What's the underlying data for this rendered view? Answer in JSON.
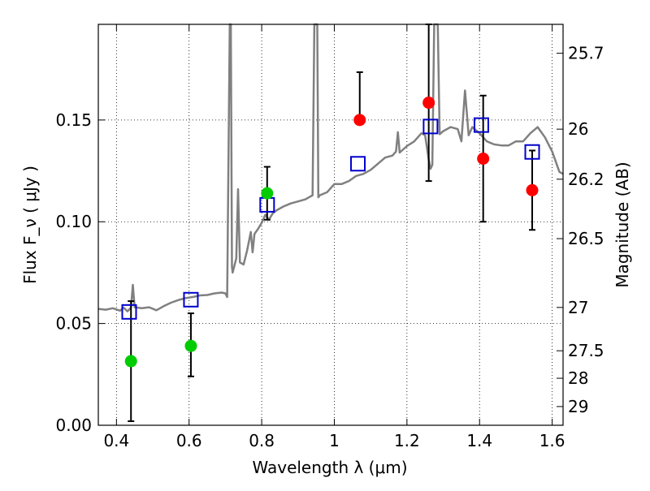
{
  "chart_data": {
    "type": "scatter",
    "xlabel": "Wavelength  λ (μm)",
    "ylabel": "Flux  F_ν  ( μJy )",
    "y2label": "Magnitude (AB)",
    "xlim": [
      0.35,
      1.63
    ],
    "ylim": [
      0.0,
      0.197
    ],
    "grid": true,
    "x_ticks": [
      {
        "value": 0.4,
        "label": "0.4"
      },
      {
        "value": 0.6,
        "label": "0.6"
      },
      {
        "value": 0.8,
        "label": "0.8"
      },
      {
        "value": 1.0,
        "label": "1"
      },
      {
        "value": 1.2,
        "label": "1.2"
      },
      {
        "value": 1.4,
        "label": "1.4"
      },
      {
        "value": 1.6,
        "label": "1.6"
      }
    ],
    "y_ticks": [
      {
        "value": 0.0,
        "label": "0.00"
      },
      {
        "value": 0.05,
        "label": "0.05"
      },
      {
        "value": 0.1,
        "label": "0.10"
      },
      {
        "value": 0.15,
        "label": "0.15"
      }
    ],
    "y2_ticks": [
      {
        "flux": 0.1828,
        "label": "25.7"
      },
      {
        "flux": 0.1455,
        "label": "26"
      },
      {
        "flux": 0.1209,
        "label": "26.2"
      },
      {
        "flux": 0.0917,
        "label": "26.5"
      },
      {
        "flux": 0.0579,
        "label": "27"
      },
      {
        "flux": 0.0366,
        "label": "27.5"
      },
      {
        "flux": 0.0231,
        "label": "28"
      },
      {
        "flux": 0.0092,
        "label": "29"
      }
    ],
    "series": [
      {
        "kind": "line",
        "color": "#808080",
        "points": [
          [
            0.35,
            0.0572
          ],
          [
            0.37,
            0.0568
          ],
          [
            0.39,
            0.0575
          ],
          [
            0.41,
            0.0563
          ],
          [
            0.42,
            0.0578
          ],
          [
            0.43,
            0.056
          ],
          [
            0.44,
            0.0578
          ],
          [
            0.445,
            0.069
          ],
          [
            0.45,
            0.058
          ],
          [
            0.47,
            0.0575
          ],
          [
            0.49,
            0.058
          ],
          [
            0.51,
            0.0565
          ],
          [
            0.53,
            0.0585
          ],
          [
            0.55,
            0.0602
          ],
          [
            0.57,
            0.0615
          ],
          [
            0.59,
            0.0625
          ],
          [
            0.61,
            0.063
          ],
          [
            0.63,
            0.0638
          ],
          [
            0.65,
            0.064
          ],
          [
            0.67,
            0.0648
          ],
          [
            0.69,
            0.0652
          ],
          [
            0.7,
            0.0648
          ],
          [
            0.705,
            0.063
          ],
          [
            0.71,
            0.16
          ],
          [
            0.712,
            0.197
          ],
          [
            0.715,
            0.197
          ],
          [
            0.718,
            0.078
          ],
          [
            0.72,
            0.075
          ],
          [
            0.73,
            0.082
          ],
          [
            0.735,
            0.116
          ],
          [
            0.74,
            0.08
          ],
          [
            0.75,
            0.079
          ],
          [
            0.76,
            0.086
          ],
          [
            0.77,
            0.095
          ],
          [
            0.775,
            0.085
          ],
          [
            0.78,
            0.094
          ],
          [
            0.79,
            0.0965
          ],
          [
            0.8,
            0.0995
          ],
          [
            0.81,
            0.1035
          ],
          [
            0.82,
            0.101
          ],
          [
            0.83,
            0.104
          ],
          [
            0.84,
            0.1055
          ],
          [
            0.86,
            0.1075
          ],
          [
            0.88,
            0.109
          ],
          [
            0.9,
            0.11
          ],
          [
            0.92,
            0.111
          ],
          [
            0.94,
            0.113
          ],
          [
            0.945,
            0.197
          ],
          [
            0.953,
            0.197
          ],
          [
            0.956,
            0.112
          ],
          [
            0.96,
            0.113
          ],
          [
            0.98,
            0.1145
          ],
          [
            1.0,
            0.1185
          ],
          [
            1.02,
            0.1185
          ],
          [
            1.04,
            0.12
          ],
          [
            1.06,
            0.1225
          ],
          [
            1.08,
            0.1235
          ],
          [
            1.1,
            0.1255
          ],
          [
            1.12,
            0.1285
          ],
          [
            1.14,
            0.1315
          ],
          [
            1.16,
            0.1325
          ],
          [
            1.17,
            0.1345
          ],
          [
            1.175,
            0.144
          ],
          [
            1.18,
            0.134
          ],
          [
            1.2,
            0.1372
          ],
          [
            1.22,
            0.1395
          ],
          [
            1.24,
            0.1435
          ],
          [
            1.25,
            0.1425
          ],
          [
            1.26,
            0.1305
          ],
          [
            1.265,
            0.126
          ],
          [
            1.27,
            0.128
          ],
          [
            1.275,
            0.197
          ],
          [
            1.285,
            0.197
          ],
          [
            1.29,
            0.143
          ],
          [
            1.3,
            0.1445
          ],
          [
            1.32,
            0.1465
          ],
          [
            1.34,
            0.1455
          ],
          [
            1.35,
            0.1395
          ],
          [
            1.36,
            0.1645
          ],
          [
            1.37,
            0.1425
          ],
          [
            1.38,
            0.1465
          ],
          [
            1.4,
            0.1435
          ],
          [
            1.42,
            0.1395
          ],
          [
            1.44,
            0.138
          ],
          [
            1.46,
            0.1375
          ],
          [
            1.48,
            0.1375
          ],
          [
            1.5,
            0.1395
          ],
          [
            1.52,
            0.1395
          ],
          [
            1.54,
            0.1435
          ],
          [
            1.56,
            0.1465
          ],
          [
            1.58,
            0.1415
          ],
          [
            1.6,
            0.1345
          ],
          [
            1.62,
            0.1245
          ],
          [
            1.63,
            0.1235
          ]
        ]
      },
      {
        "kind": "open-square",
        "color": "#0000cc",
        "points": [
          [
            0.435,
            0.0557
          ],
          [
            0.605,
            0.0617
          ],
          [
            0.815,
            0.1083
          ],
          [
            1.065,
            0.1285
          ],
          [
            1.265,
            0.1468
          ],
          [
            1.405,
            0.1475
          ],
          [
            1.545,
            0.1343
          ]
        ]
      },
      {
        "kind": "filled-circle",
        "color": "#00cc00",
        "points": [
          {
            "x": 0.44,
            "y": 0.0315,
            "err_lo": 0.0295,
            "err_hi": 0.0295
          },
          {
            "x": 0.605,
            "y": 0.039,
            "err_lo": 0.015,
            "err_hi": 0.016
          },
          {
            "x": 0.815,
            "y": 0.114,
            "err_lo": 0.013,
            "err_hi": 0.013
          }
        ]
      },
      {
        "kind": "filled-circle",
        "color": "#ff0000",
        "points": [
          {
            "x": 1.07,
            "y": 0.15,
            "err_lo": 0.0,
            "err_hi": 0.0235
          },
          {
            "x": 1.26,
            "y": 0.1585,
            "err_lo": 0.0385,
            "err_hi": 0.0385
          },
          {
            "x": 1.41,
            "y": 0.131,
            "err_lo": 0.031,
            "err_hi": 0.031
          },
          {
            "x": 1.545,
            "y": 0.1155,
            "err_lo": 0.0195,
            "err_hi": 0.0195
          }
        ]
      }
    ]
  }
}
